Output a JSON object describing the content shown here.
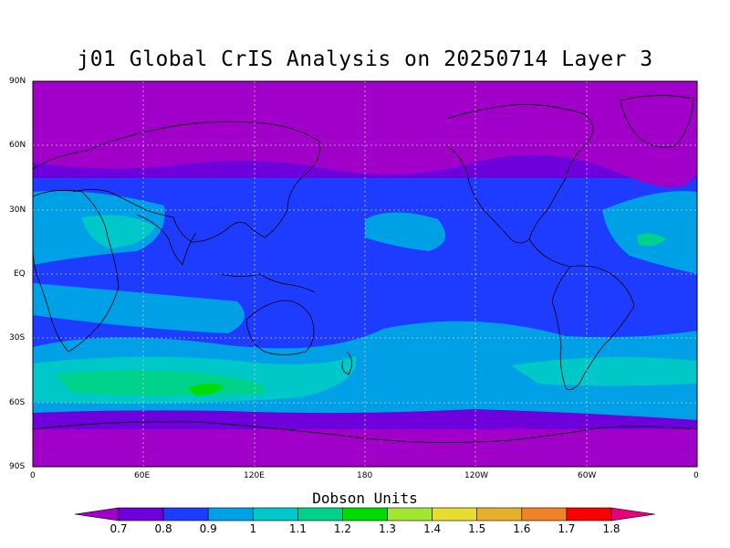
{
  "title": "j01 Global CrIS Analysis on 20250714 Layer 3",
  "lat_labels": [
    "90N",
    "60N",
    "30N",
    "EQ",
    "30S",
    "60S",
    "90S"
  ],
  "lon_labels": [
    "0",
    "60E",
    "120E",
    "180",
    "120W",
    "60W",
    "0"
  ],
  "colorbar": {
    "title": "Dobson Units",
    "labels": [
      "0.7",
      "0.8",
      "0.9",
      "1",
      "1.1",
      "1.2",
      "1.3",
      "1.4",
      "1.5",
      "1.6",
      "1.7",
      "1.8"
    ],
    "colors": [
      "#a000c8",
      "#6e00dc",
      "#1e3cff",
      "#00a0e6",
      "#00c8c8",
      "#00d28c",
      "#00dc00",
      "#a0e632",
      "#e6dc32",
      "#e6af2d",
      "#f08228",
      "#fa0000",
      "#e6007a"
    ]
  },
  "chart_data": {
    "type": "heatmap",
    "title": "j01 Global CrIS Analysis on 20250714 Layer 3",
    "xlabel": "",
    "ylabel": "",
    "units": "Dobson Units",
    "xlim": [
      0,
      360
    ],
    "ylim": [
      -90,
      90
    ],
    "levels": [
      0.7,
      0.8,
      0.9,
      1,
      1.1,
      1.2,
      1.3,
      1.4,
      1.5,
      1.6,
      1.7,
      1.8
    ],
    "grid": true
  }
}
